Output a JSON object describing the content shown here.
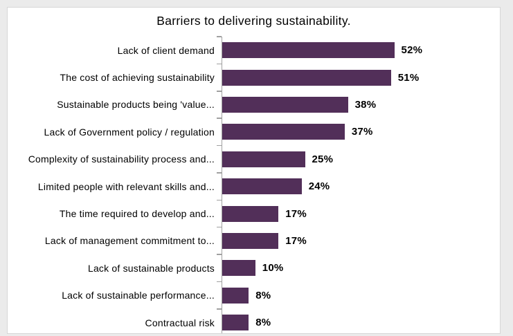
{
  "colors": {
    "outer_background": "#ebebeb",
    "panel_background": "#ffffff",
    "panel_border": "#d6d6d6",
    "bar_color": "#522f59",
    "axis_color": "#a0a0a0",
    "text_color": "#000000"
  },
  "chart_data": {
    "type": "bar",
    "orientation": "horizontal",
    "title": "Barriers to delivering sustainability.",
    "categories": [
      "Lack of client demand",
      "The cost of achieving sustainability",
      "Sustainable products being 'value...",
      "Lack of Government policy / regulation",
      "Complexity of sustainability process and...",
      "Limited people with relevant skills and...",
      "The time required to develop and...",
      "Lack of management commitment to...",
      "Lack of sustainable products",
      "Lack of sustainable performance...",
      "Contractual risk"
    ],
    "values": [
      52,
      51,
      38,
      37,
      25,
      24,
      17,
      17,
      10,
      8,
      8
    ],
    "value_labels": [
      "52%",
      "51%",
      "38%",
      "37%",
      "25%",
      "24%",
      "17%",
      "17%",
      "10%",
      "8%",
      "8%"
    ],
    "xlabel": "",
    "ylabel": "",
    "xlim": [
      0,
      60
    ],
    "grid": false,
    "legend": false,
    "data_labels_position": "end-of-bar",
    "sort_order": "descending"
  }
}
